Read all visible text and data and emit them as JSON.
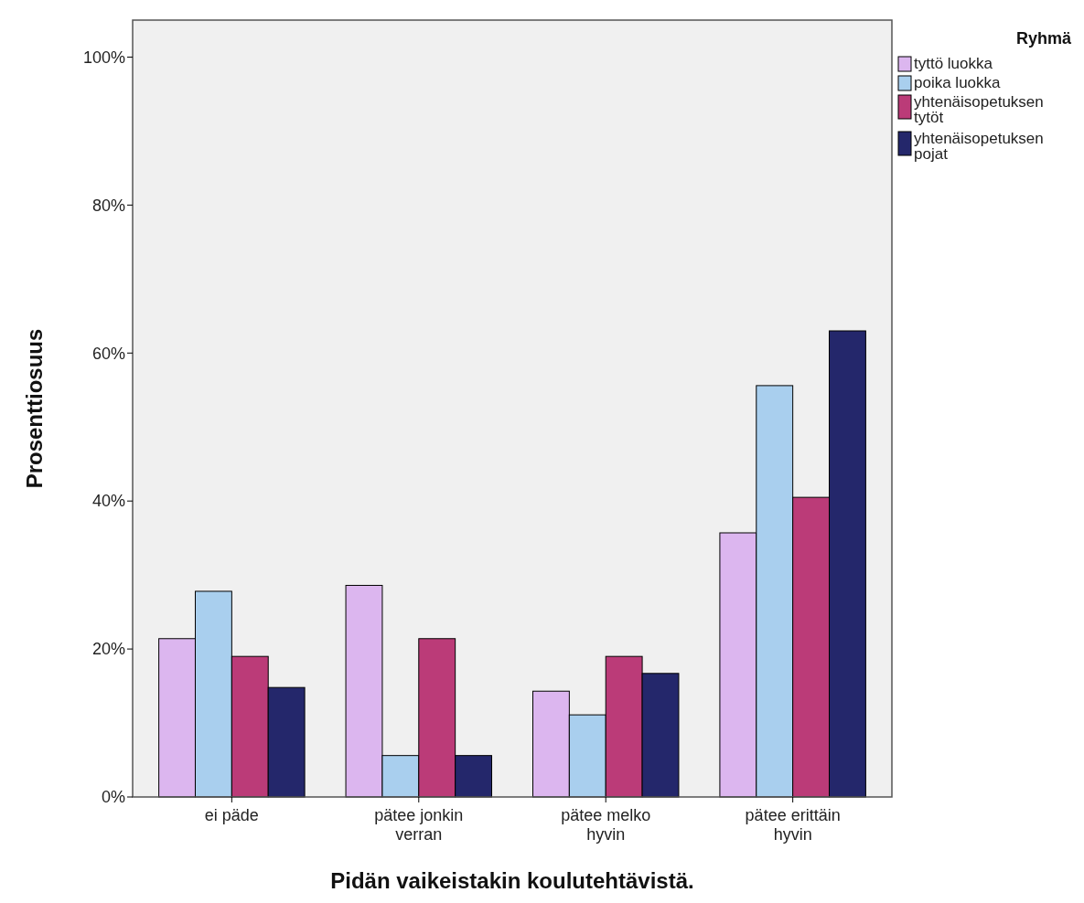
{
  "chart_data": {
    "type": "bar",
    "xlabel": "Pidän vaikeistakin koulutehtävistä.",
    "ylabel": "Prosenttiosuus",
    "legend_title": "Ryhmä",
    "categories": [
      "ei päde",
      "pätee jonkin verran",
      "pätee melko hyvin",
      "pätee erittäin hyvin"
    ],
    "series": [
      {
        "name": "tyttö luokka",
        "color": "#dcb6ef",
        "values": [
          21.4,
          28.6,
          14.3,
          35.7
        ]
      },
      {
        "name": "poika luokka",
        "color": "#a9cfee",
        "values": [
          27.8,
          5.6,
          11.1,
          55.6
        ]
      },
      {
        "name": "yhtenäisopetuksen tytöt",
        "color": "#bb3b78",
        "values": [
          19.0,
          21.4,
          19.0,
          40.5
        ]
      },
      {
        "name": "yhtenäisopetuksen pojat",
        "color": "#24276b",
        "values": [
          14.8,
          5.6,
          16.7,
          63.0
        ]
      }
    ],
    "ylim": [
      0,
      105
    ],
    "yticks": [
      {
        "value": 0,
        "label": "0%"
      },
      {
        "value": 20,
        "label": "20%"
      },
      {
        "value": 40,
        "label": "40%"
      },
      {
        "value": 60,
        "label": "60%"
      },
      {
        "value": 80,
        "label": "80%"
      },
      {
        "value": 100,
        "label": "100%"
      }
    ],
    "grid": false,
    "legend": "right"
  }
}
